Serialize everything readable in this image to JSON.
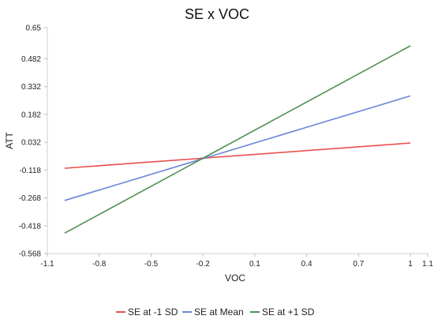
{
  "chart_data": {
    "type": "line",
    "title": "SE x VOC",
    "xlabel": "VOC",
    "ylabel": "ATT",
    "xlim": [
      -1.1,
      1.1
    ],
    "ylim": [
      -0.568,
      0.65
    ],
    "x_ticks": [
      -1.1,
      -0.8,
      -0.5,
      -0.2,
      0.1,
      0.4,
      0.7,
      1,
      1.1
    ],
    "x_tick_labels": [
      "-1.1",
      "-0.8",
      "-0.5",
      "-0.2",
      "0.1",
      "0.4",
      "0.7",
      "1",
      "1.1"
    ],
    "y_ticks": [
      0.65,
      0.482,
      0.332,
      0.182,
      0.032,
      -0.118,
      -0.268,
      -0.418,
      -0.568
    ],
    "y_tick_labels": [
      "0.65",
      "0.482",
      "0.332",
      "0.182",
      "0.032",
      "-0.118",
      "-0.268",
      "-0.418",
      "-0.568"
    ],
    "grid": false,
    "legend_position": "bottom",
    "series": [
      {
        "name": "SE at -1 SD",
        "color": "#e8524f",
        "x": [
          -1,
          1
        ],
        "y": [
          -0.108,
          0.028
        ]
      },
      {
        "name": "SE at Mean",
        "color": "#6b86d6",
        "x": [
          -1,
          1
        ],
        "y": [
          -0.282,
          0.282
        ]
      },
      {
        "name": "SE at +1 SD",
        "color": "#4e8f52",
        "x": [
          -1,
          1
        ],
        "y": [
          -0.458,
          0.552
        ]
      }
    ]
  }
}
